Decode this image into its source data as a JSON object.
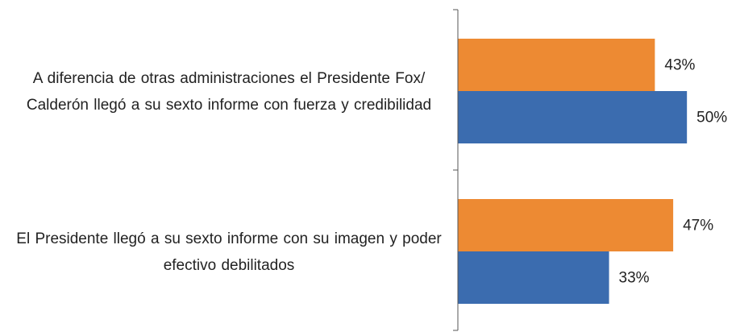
{
  "chart_data": {
    "type": "bar",
    "orientation": "horizontal",
    "categories": [
      "A diferencia de otras administraciones el Presidente Fox/ Calderón llegó a su sexto informe con fuerza y credibilidad",
      "El Presidente llegó a su sexto informe con su imagen y poder efectivo debilitados"
    ],
    "series": [
      {
        "color": "#ed8a33",
        "values": [
          43,
          47
        ],
        "value_labels": [
          "43%",
          "47%"
        ]
      },
      {
        "color": "#3b6caf",
        "values": [
          50,
          33
        ],
        "value_labels": [
          "50%",
          "33%"
        ]
      }
    ],
    "xlim": [
      0,
      60
    ],
    "grid": false
  }
}
